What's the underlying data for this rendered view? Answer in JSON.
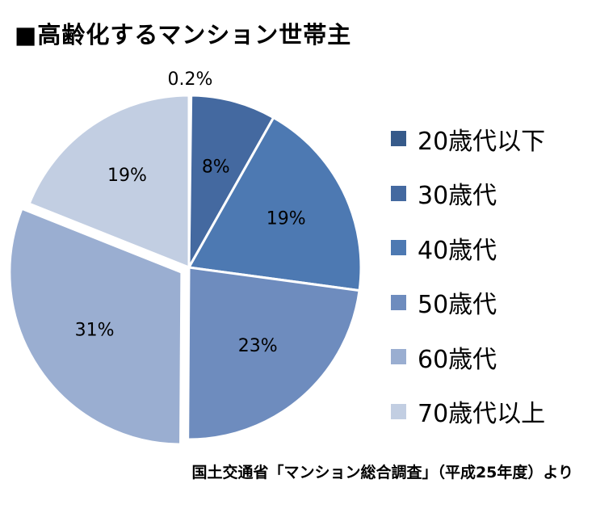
{
  "title": "■高齢化するマンション世帯主",
  "source": "国土交通省「マンション総合調査」（平成25年度）より",
  "chart_data": {
    "type": "pie",
    "title": "■高齢化するマンション世帯主",
    "categories": [
      "20歳代以下",
      "30歳代",
      "40歳代",
      "50歳代",
      "60歳代",
      "70歳代以上"
    ],
    "values": [
      0.2,
      8,
      19,
      23,
      31,
      19
    ],
    "data_labels": [
      "0.2%",
      "8%",
      "19%",
      "23%",
      "31%",
      "19%"
    ],
    "colors": [
      "#365a8a",
      "#4469a0",
      "#4d79b2",
      "#6e8cbe",
      "#9aaed1",
      "#c2cee2"
    ],
    "exploded_slice": "60歳代",
    "legend_position": "right"
  }
}
